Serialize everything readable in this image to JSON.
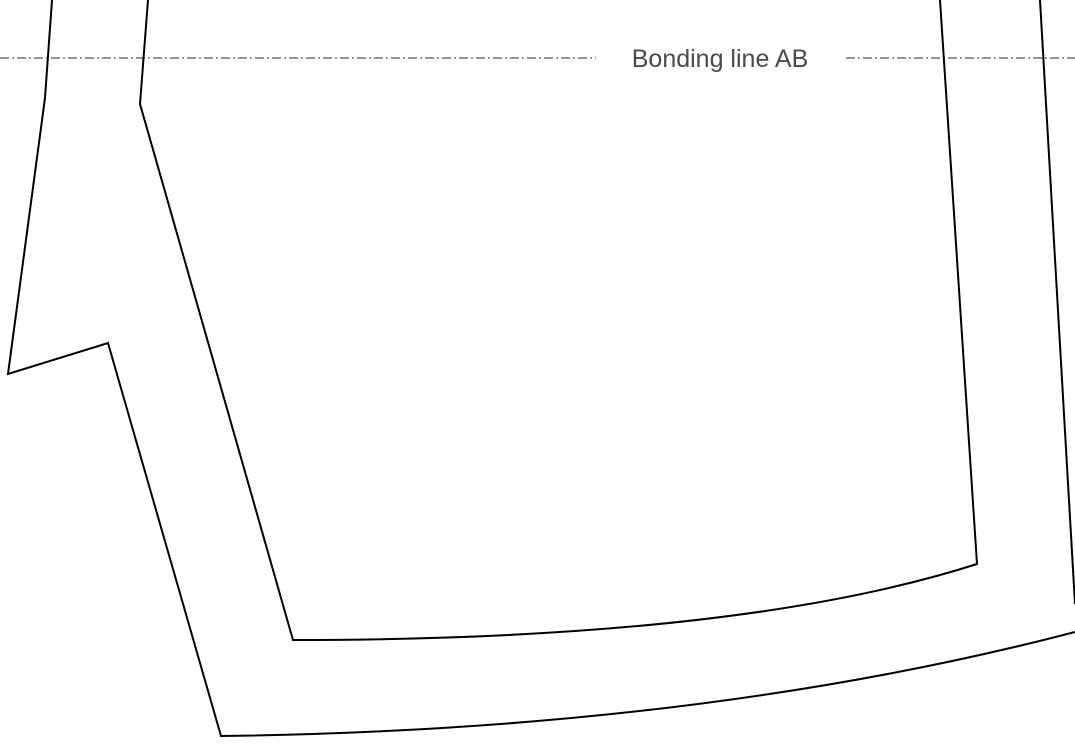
{
  "diagram": {
    "bonding_line_label": "Bonding line AB",
    "line_color": "#000000",
    "bonding_line_color": "#555555",
    "label_color": "#4a4a4a",
    "background": "#ffffff"
  }
}
